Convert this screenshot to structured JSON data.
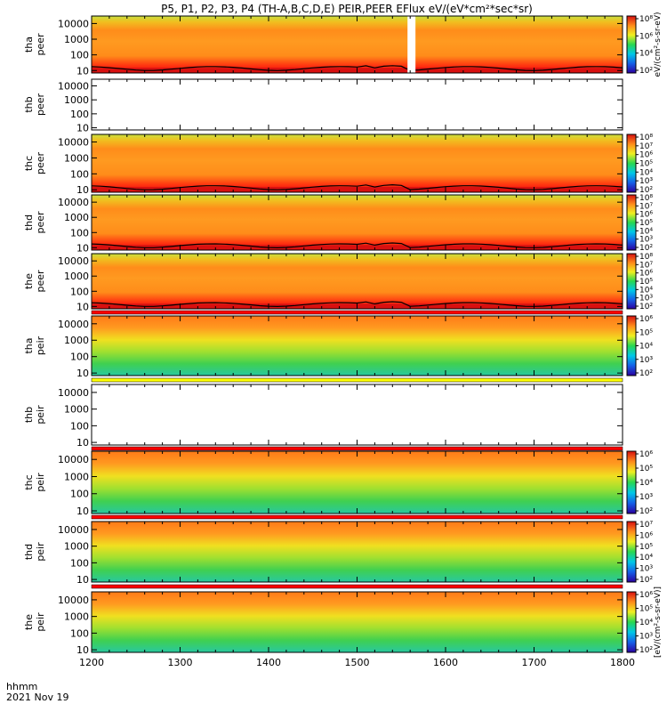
{
  "title": "P5, P1, P2, P3, P4 (TH-A,B,C,D,E) PEIR,PEER EFlux eV/(eV*cm²*sec*sr)",
  "footer": {
    "time_unit": "hhmm",
    "date": "2021 Nov 19"
  },
  "colors": {
    "spectrogram_palette": [
      "#2b00a0",
      "#1560e8",
      "#00c8e8",
      "#28d850",
      "#f0f020",
      "#ff8c1a",
      "#d81010"
    ],
    "missing": "#ffffff",
    "flag_red": "#ff0000",
    "flag_yellow": "#ffff00"
  },
  "chart_data": {
    "type": "heatmap",
    "x_axis": {
      "label": "hhmm",
      "range": [
        1200,
        1800
      ],
      "ticks": [
        "1200",
        "1300",
        "1400",
        "1500",
        "1600",
        "1700",
        "1800"
      ]
    },
    "y_ticks": [
      "10",
      "100",
      "1000",
      "10000"
    ],
    "panels": [
      {
        "id": "tha-peer",
        "probe": "tha",
        "species": "peer",
        "ylim": [
          7,
          30000
        ],
        "has_data": true,
        "colorbar_ticks": [
          "10²",
          "10⁴",
          "10⁶",
          "10⁸"
        ],
        "colorbar_label": "eV/(cm²-s-sr-eV)",
        "data_gaps": [
          [
            1557,
            1566
          ]
        ]
      },
      {
        "id": "thb-peer",
        "probe": "thb",
        "species": "peer",
        "ylim": [
          7,
          30000
        ],
        "has_data": false
      },
      {
        "id": "thc-peer",
        "probe": "thc",
        "species": "peer",
        "ylim": [
          7,
          30000
        ],
        "has_data": true,
        "colorbar_ticks": [
          "10²",
          "10³",
          "10⁴",
          "10⁵",
          "10⁶",
          "10⁷",
          "10⁸"
        ]
      },
      {
        "id": "thd-peer",
        "probe": "thd",
        "species": "peer",
        "ylim": [
          7,
          30000
        ],
        "has_data": true,
        "colorbar_ticks": [
          "10²",
          "10³",
          "10⁴",
          "10⁵",
          "10⁶",
          "10⁷",
          "10⁸"
        ]
      },
      {
        "id": "the-peer",
        "probe": "the",
        "species": "peer",
        "ylim": [
          7,
          30000
        ],
        "has_data": true,
        "colorbar_ticks": [
          "10²",
          "10³",
          "10⁴",
          "10⁵",
          "10⁶",
          "10⁷",
          "10⁸"
        ]
      },
      {
        "id": "tha-peir",
        "probe": "tha",
        "species": "peir",
        "ylim": [
          7,
          30000
        ],
        "has_data": true,
        "colorbar_ticks": [
          "10²",
          "10³",
          "10⁴",
          "10⁵",
          "10⁶"
        ]
      },
      {
        "id": "thb-peir",
        "probe": "thb",
        "species": "peir",
        "ylim": [
          7,
          30000
        ],
        "has_data": false
      },
      {
        "id": "thc-peir",
        "probe": "thc",
        "species": "peir",
        "ylim": [
          7,
          30000
        ],
        "has_data": true,
        "colorbar_ticks": [
          "10²",
          "10³",
          "10⁴",
          "10⁵",
          "10⁶"
        ]
      },
      {
        "id": "thd-peir",
        "probe": "thd",
        "species": "peir",
        "ylim": [
          7,
          30000
        ],
        "has_data": true,
        "colorbar_ticks": [
          "10²",
          "10³",
          "10⁴",
          "10⁵",
          "10⁶",
          "10⁷"
        ]
      },
      {
        "id": "the-peir",
        "probe": "the",
        "species": "peir",
        "ylim": [
          7,
          30000
        ],
        "has_data": true,
        "colorbar_ticks": [
          "10²",
          "10³",
          "10⁴",
          "10⁵",
          "10⁶"
        ],
        "colorbar_label": "[eV/(cm²-s-sr-eV)]"
      }
    ],
    "flag_bars": [
      {
        "between": [
          "the-peer",
          "tha-peir"
        ],
        "color": "red",
        "label": "none"
      },
      {
        "between": [
          "tha-peir",
          "thb-peir"
        ],
        "color": "yellow",
        "label": "none"
      },
      {
        "between": [
          "thb-peir",
          "thc-peir"
        ],
        "color": "red",
        "label": "none"
      },
      {
        "between": [
          "thc-peir",
          "thd-peir"
        ],
        "color": "red",
        "label": "none"
      },
      {
        "between": [
          "thd-peir",
          "the-peir"
        ],
        "color": "red",
        "label": "none"
      }
    ]
  }
}
